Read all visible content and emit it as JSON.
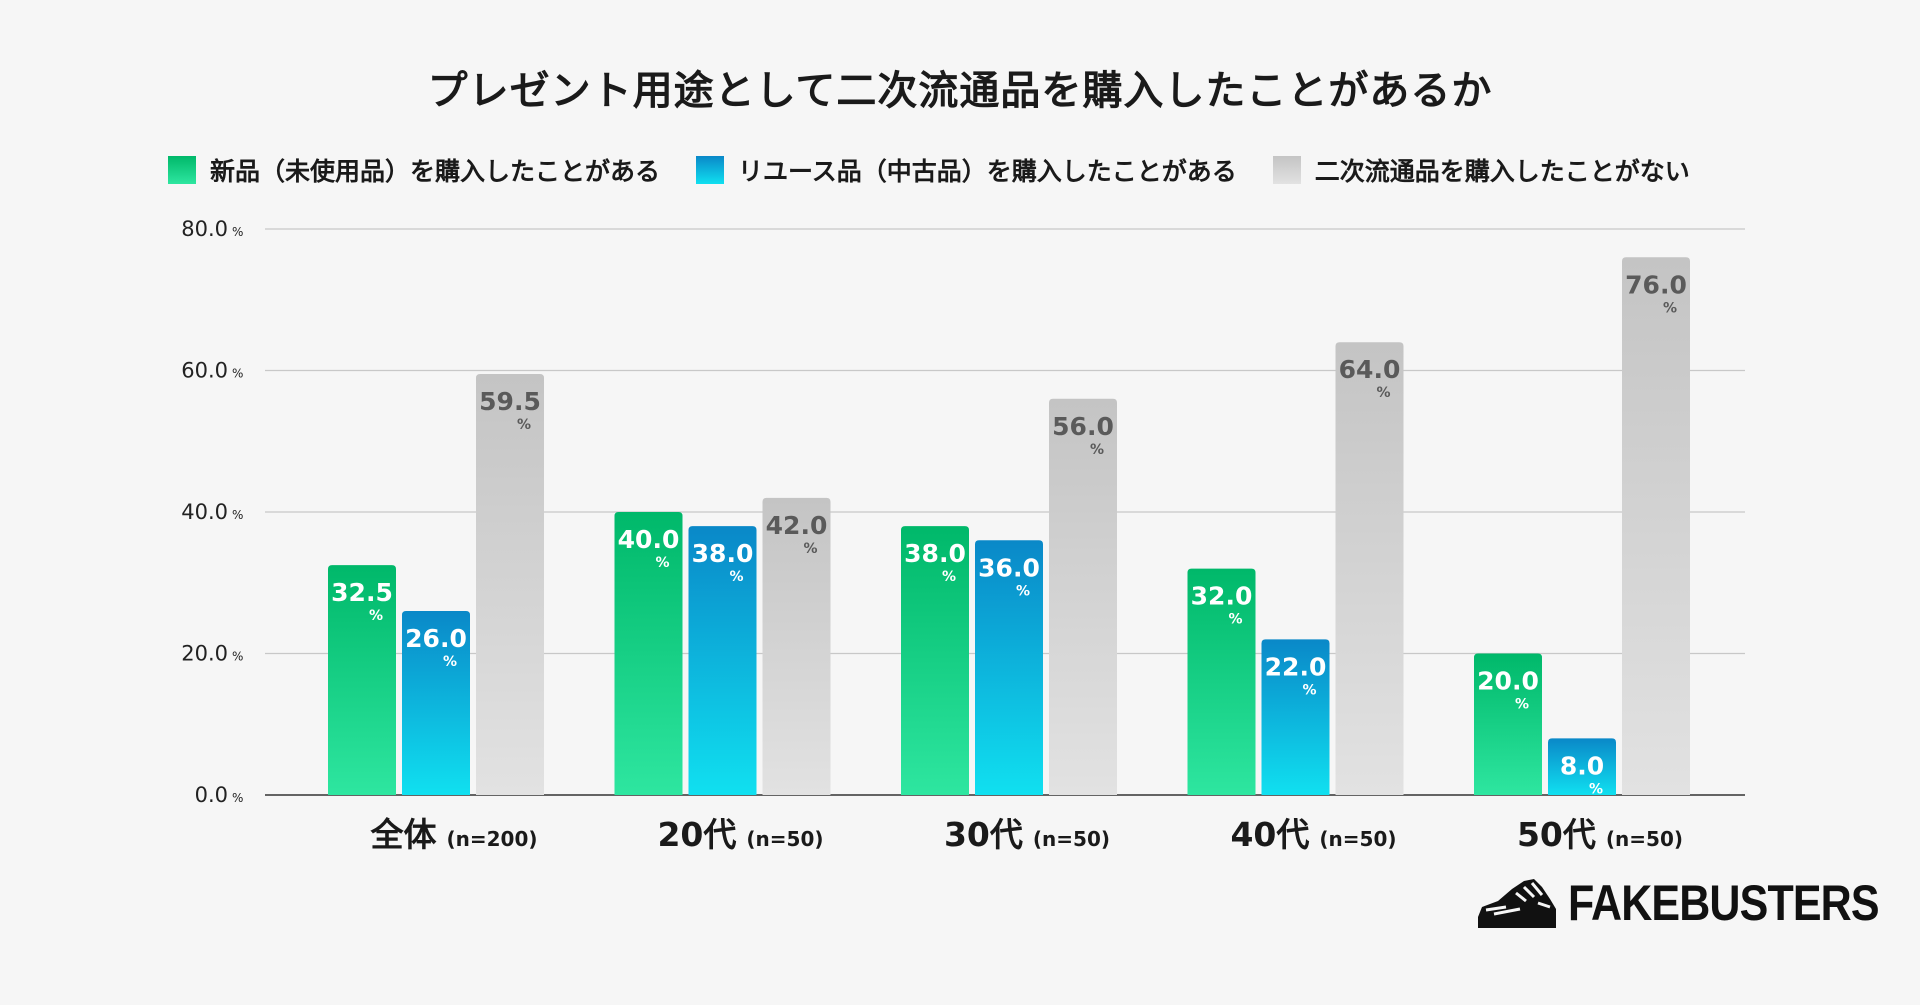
{
  "chart_data": {
    "type": "bar",
    "title": "プレゼント用途として二次流通品を購入したことがあるか",
    "categories": [
      {
        "label": "全体",
        "sub": "(n=200)"
      },
      {
        "label": "20代",
        "sub": "(n=50)"
      },
      {
        "label": "30代",
        "sub": "(n=50)"
      },
      {
        "label": "40代",
        "sub": "(n=50)"
      },
      {
        "label": "50代",
        "sub": "(n=50)"
      }
    ],
    "series": [
      {
        "name": "新品（未使用品）を購入したことがある",
        "values": [
          32.5,
          40.0,
          38.0,
          32.0,
          20.0
        ],
        "color_top": "#00b86a",
        "color_bottom": "#2ee6a0",
        "label_color": "#ffffff"
      },
      {
        "name": "リユース品（中古品）を購入したことがある",
        "values": [
          26.0,
          38.0,
          36.0,
          22.0,
          8.0
        ],
        "color_top": "#0a88c8",
        "color_bottom": "#10e0f0",
        "label_color": "#ffffff"
      },
      {
        "name": "二次流通品を購入したことがない",
        "values": [
          59.5,
          42.0,
          56.0,
          64.0,
          76.0
        ],
        "color_top": "#c4c4c4",
        "color_bottom": "#e2e2e2",
        "label_color": "#5a5a5a"
      }
    ],
    "ylim": [
      0,
      80
    ],
    "yticks": [
      "0.0",
      "20.0",
      "40.0",
      "60.0",
      "80.0"
    ],
    "yunit": "%",
    "grid": true,
    "legend": "top"
  },
  "brand": {
    "name": "FAKEBUSTERS",
    "logo_icon": "sneaker-icon"
  }
}
